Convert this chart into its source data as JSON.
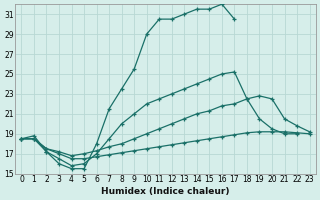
{
  "xlabel": "Humidex (Indice chaleur)",
  "xlim": [
    -0.5,
    23.5
  ],
  "ylim": [
    15,
    32
  ],
  "yticks": [
    15,
    17,
    19,
    21,
    23,
    25,
    27,
    29,
    31
  ],
  "xticks": [
    0,
    1,
    2,
    3,
    4,
    5,
    6,
    7,
    8,
    9,
    10,
    11,
    12,
    13,
    14,
    15,
    16,
    17,
    18,
    19,
    20,
    21,
    22,
    23
  ],
  "background_color": "#d6eeea",
  "grid_color": "#b8d8d4",
  "line_color": "#1a7068",
  "lines": [
    {
      "x": [
        0,
        1,
        2,
        3,
        4,
        5,
        6,
        7,
        8,
        9,
        10,
        11,
        12,
        13,
        14,
        15,
        16,
        17
      ],
      "y": [
        18.5,
        18.8,
        17.2,
        16.0,
        15.5,
        15.5,
        18.0,
        21.5,
        23.5,
        25.5,
        29.0,
        30.5,
        30.5,
        31.0,
        31.5,
        31.5,
        32.0,
        30.5
      ]
    },
    {
      "x": [
        0,
        1,
        2,
        3,
        4,
        5,
        6,
        7,
        8,
        9,
        10,
        11,
        12,
        13,
        14,
        15,
        16,
        17,
        18,
        19,
        20,
        21,
        22,
        23
      ],
      "y": [
        18.5,
        18.5,
        17.2,
        16.5,
        15.8,
        16.0,
        17.0,
        18.5,
        20.0,
        21.0,
        22.0,
        22.5,
        23.0,
        23.5,
        24.0,
        24.5,
        25.0,
        25.2,
        22.5,
        20.5,
        19.5,
        19.0,
        19.0,
        null
      ]
    },
    {
      "x": [
        0,
        1,
        2,
        3,
        4,
        5,
        6,
        7,
        8,
        9,
        10,
        11,
        12,
        13,
        14,
        15,
        16,
        17,
        18,
        19,
        20,
        21,
        22,
        23
      ],
      "y": [
        18.5,
        18.5,
        17.5,
        17.2,
        16.8,
        17.0,
        17.3,
        17.7,
        18.0,
        18.5,
        19.0,
        19.5,
        20.0,
        20.5,
        21.0,
        21.3,
        21.8,
        22.0,
        22.5,
        22.8,
        22.5,
        20.5,
        19.8,
        19.2
      ]
    },
    {
      "x": [
        0,
        1,
        2,
        3,
        4,
        5,
        6,
        7,
        8,
        9,
        10,
        11,
        12,
        13,
        14,
        15,
        16,
        17,
        18,
        19,
        20,
        21,
        22,
        23
      ],
      "y": [
        18.5,
        18.5,
        17.5,
        17.0,
        16.5,
        16.5,
        16.7,
        16.9,
        17.1,
        17.3,
        17.5,
        17.7,
        17.9,
        18.1,
        18.3,
        18.5,
        18.7,
        18.9,
        19.1,
        19.2,
        19.2,
        19.2,
        19.1,
        19.0
      ]
    }
  ]
}
